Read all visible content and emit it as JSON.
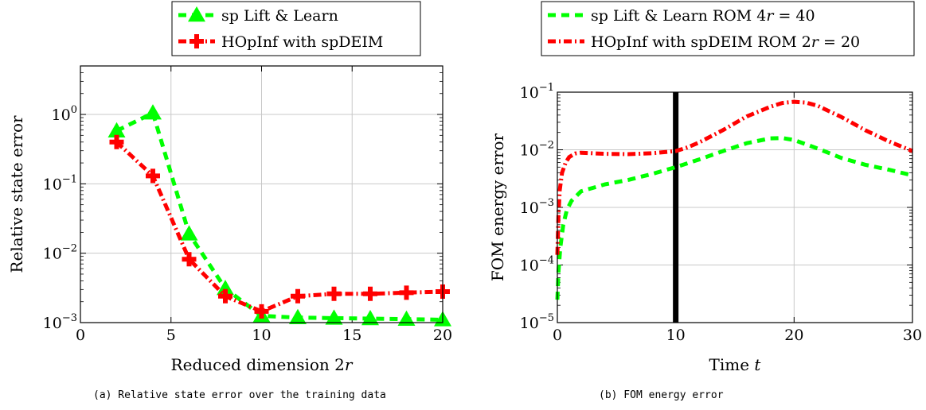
{
  "chart_data": [
    {
      "type": "line",
      "panel_label": "(a)",
      "caption": "(a) Relative state error over the training data",
      "xlabel": "Reduced dimension 2r",
      "ylabel": "Relative state error",
      "xlim": [
        0,
        20
      ],
      "ylim": [
        0.001,
        5
      ],
      "yscale": "log",
      "grid": true,
      "legend_position": "above",
      "xticks": [
        0,
        5,
        10,
        15,
        20
      ],
      "yticks": [
        0.001,
        0.01,
        0.1,
        1
      ],
      "ytick_labels": [
        "10^-3",
        "10^-2",
        "10^-1",
        "10^0"
      ],
      "series": [
        {
          "name": "sp Lift & Learn",
          "color": "#00ff00",
          "style": "dashed",
          "marker": "triangle",
          "x": [
            2,
            4,
            6,
            8,
            10,
            12,
            14,
            16,
            18,
            20
          ],
          "y": [
            0.58,
            1.05,
            0.019,
            0.0031,
            0.00125,
            0.00118,
            0.00116,
            0.00114,
            0.00112,
            0.0011
          ]
        },
        {
          "name": "HOpInf with spDEIM",
          "color": "#ff0000",
          "style": "dash-dot",
          "marker": "plus",
          "x": [
            2,
            4,
            6,
            8,
            10,
            12,
            14,
            16,
            18,
            20
          ],
          "y": [
            0.4,
            0.13,
            0.0082,
            0.0024,
            0.00145,
            0.0024,
            0.0026,
            0.0026,
            0.0027,
            0.0028
          ]
        }
      ]
    },
    {
      "type": "line",
      "panel_label": "(b)",
      "caption": "(b) FOM energy error",
      "xlabel": "Time t",
      "ylabel": "FOM energy error",
      "xlim": [
        0,
        30
      ],
      "ylim": [
        1e-05,
        0.1
      ],
      "yscale": "log",
      "grid": true,
      "legend_position": "above",
      "xticks": [
        0,
        10,
        20,
        30
      ],
      "yticks": [
        1e-05,
        0.0001,
        0.001,
        0.01,
        0.1
      ],
      "ytick_labels": [
        "10^-5",
        "10^-4",
        "10^-3",
        "10^-2",
        "10^-1"
      ],
      "vline_x": 10,
      "vline_color": "#000000",
      "series": [
        {
          "name": "sp Lift & Learn ROM 4r = 40",
          "color": "#00ff00",
          "style": "dashed",
          "x": [
            0,
            0.1,
            0.25,
            0.5,
            0.8,
            1.2,
            2,
            4,
            6,
            8,
            10,
            12,
            14,
            16,
            18,
            19,
            20,
            22,
            24,
            26,
            28,
            30
          ],
          "y": [
            2.5e-05,
            8e-05,
            0.0002,
            0.0005,
            0.0009,
            0.0013,
            0.0019,
            0.0025,
            0.003,
            0.0038,
            0.005,
            0.0068,
            0.0095,
            0.013,
            0.0158,
            0.016,
            0.0148,
            0.0105,
            0.0072,
            0.0055,
            0.0045,
            0.0036
          ]
        },
        {
          "name": "HOpInf with spDEIM ROM 2r = 20",
          "color": "#ff0000",
          "style": "dash-dot",
          "x": [
            0,
            0.1,
            0.2,
            0.4,
            0.7,
            1,
            1.5,
            2,
            3,
            4,
            6,
            8,
            10,
            11,
            12,
            14,
            16,
            18,
            19,
            20,
            21,
            22,
            24,
            26,
            28,
            30
          ],
          "y": [
            0.00015,
            0.0008,
            0.002,
            0.004,
            0.006,
            0.0075,
            0.0086,
            0.0089,
            0.0087,
            0.0085,
            0.0084,
            0.0087,
            0.0095,
            0.011,
            0.0135,
            0.022,
            0.038,
            0.056,
            0.065,
            0.068,
            0.066,
            0.058,
            0.037,
            0.022,
            0.014,
            0.0095
          ]
        }
      ]
    }
  ]
}
